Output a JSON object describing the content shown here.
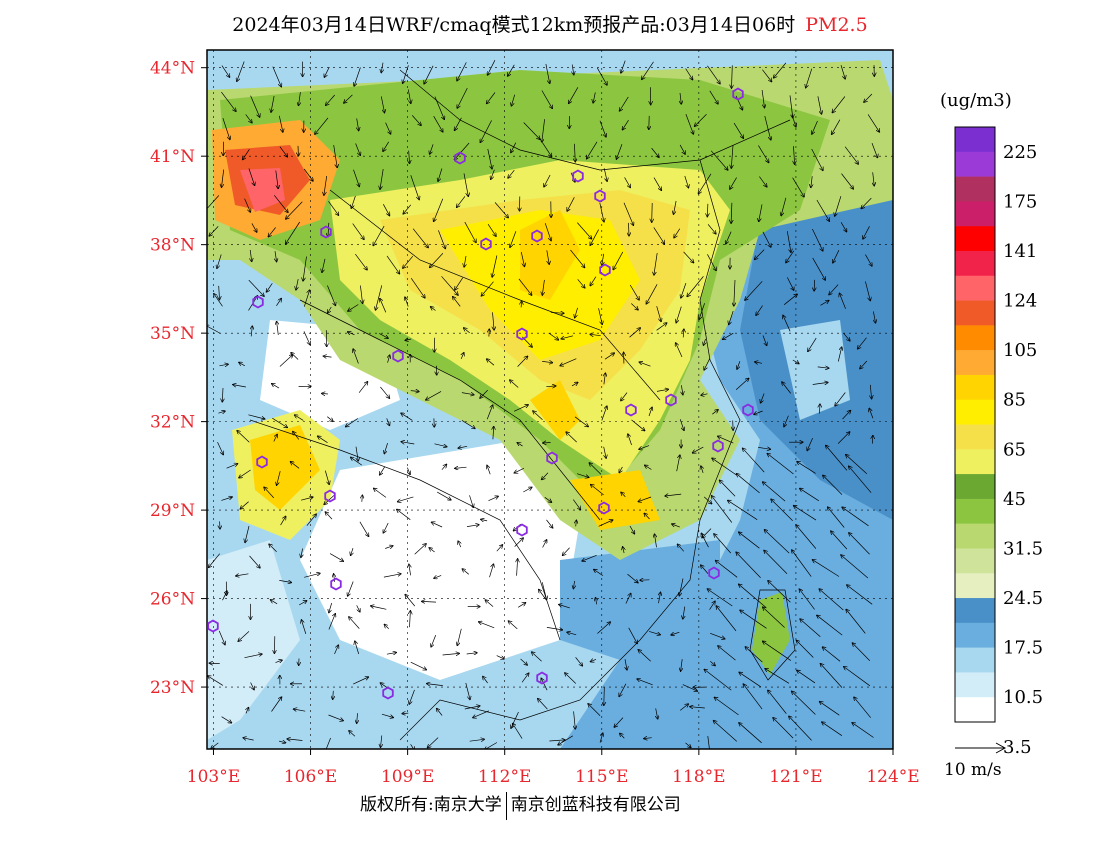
{
  "title": {
    "main": "2024年03月14日WRF/cmaq模式12km预报产品:03月14日06时",
    "pollutant": "PM2.5"
  },
  "axes": {
    "lat_labels": [
      "44°N",
      "41°N",
      "38°N",
      "35°N",
      "32°N",
      "29°N",
      "26°N",
      "23°N"
    ],
    "lat_values": [
      44,
      41,
      38,
      35,
      32,
      29,
      26,
      23
    ],
    "lon_labels": [
      "103°E",
      "106°E",
      "109°E",
      "112°E",
      "115°E",
      "118°E",
      "121°E",
      "124°E"
    ],
    "lon_values": [
      103,
      106,
      109,
      112,
      115,
      118,
      121,
      124
    ],
    "lon_range": [
      102.8,
      124.0
    ],
    "lat_range": [
      20.9,
      44.6
    ],
    "label_color": "#e8262d"
  },
  "legend": {
    "unit": "(ug/m3)",
    "labels": [
      "225",
      "175",
      "141",
      "124",
      "105",
      "85",
      "65",
      "45",
      "31.5",
      "24.5",
      "17.5",
      "10.5",
      "3.5"
    ],
    "colors": [
      "#7b2fd1",
      "#9b3ad6",
      "#b03060",
      "#cc1f6a",
      "#ff0000",
      "#f2234a",
      "#ff6468",
      "#f05a28",
      "#ff8c00",
      "#ffaa33",
      "#ffd400",
      "#ffee00",
      "#f5e04a",
      "#eef060",
      "#6aa832",
      "#8cc640",
      "#b9d870",
      "#cfe39a",
      "#e6efc0",
      "#4a90c8",
      "#6aaee0",
      "#a8d8f0",
      "#d2ecf8",
      "#ffffff"
    ]
  },
  "wind_scale": {
    "label": "10 m/s"
  },
  "footer": {
    "left": "版权所有:南京大学",
    "right": "南京创蓝科技有限公司"
  },
  "station_color": "#8a2be2"
}
